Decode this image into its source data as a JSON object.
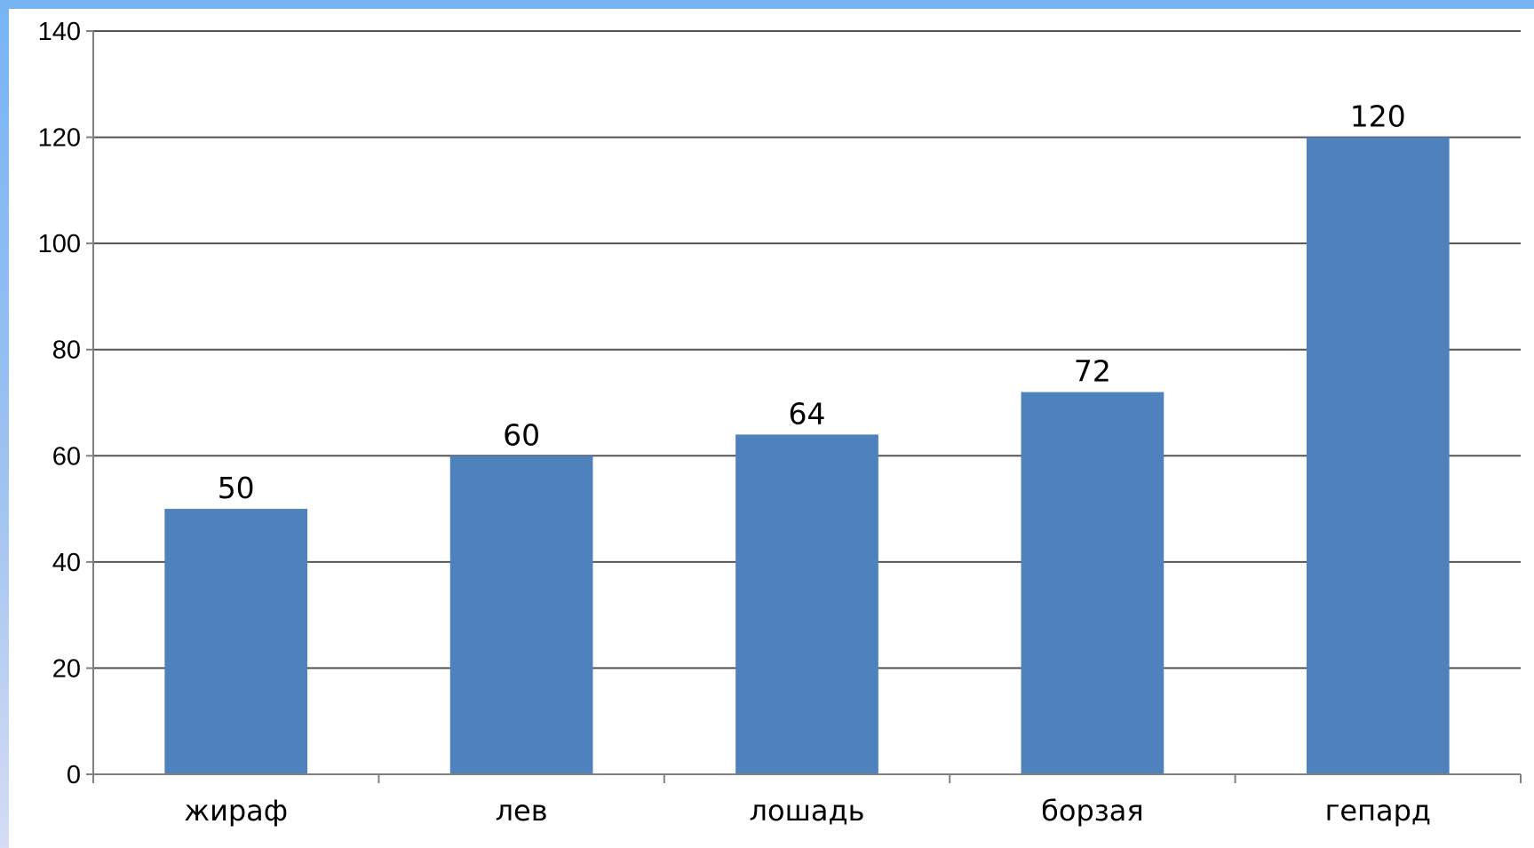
{
  "chart_data": {
    "type": "bar",
    "categories": [
      "жираф",
      "лев",
      "лошадь",
      "борзая",
      "гепард"
    ],
    "values": [
      50,
      60,
      64,
      72,
      120
    ],
    "data_labels": [
      "50",
      "60",
      "64",
      "72",
      "120"
    ],
    "title": "",
    "xlabel": "",
    "ylabel": "",
    "ylim": [
      0,
      140
    ],
    "yticks": [
      0,
      20,
      40,
      60,
      80,
      100,
      120,
      140
    ],
    "ytick_labels": [
      "0",
      "20",
      "40",
      "60",
      "80",
      "100",
      "120",
      "140"
    ],
    "grid": true,
    "legend": "none",
    "colors": {
      "bar": "#4f81bd",
      "frame": "#78b4f4",
      "background": "#ffffff"
    }
  }
}
